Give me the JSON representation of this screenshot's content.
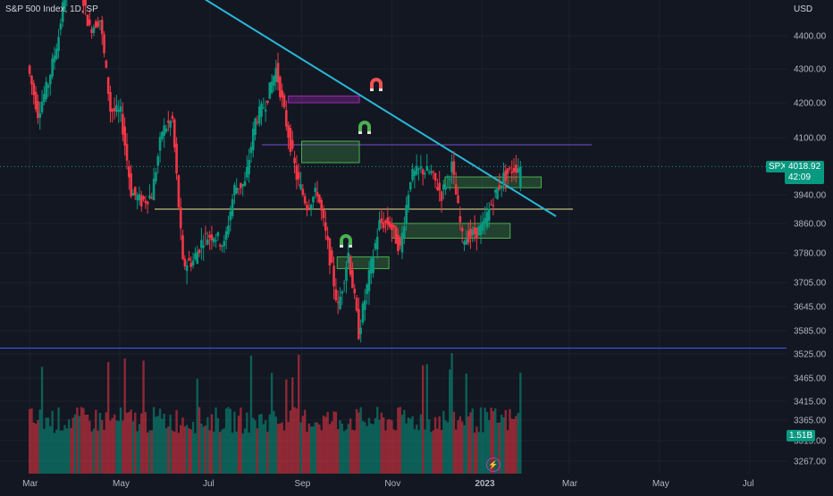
{
  "header": {
    "symbol_title": "S&P 500 Index, 1D, SP",
    "currency": "USD"
  },
  "badges": {
    "spx_label": "SPX",
    "last_price": "4018.92",
    "countdown": "42:09",
    "volume": "1.51B"
  },
  "colors": {
    "background": "#131722",
    "up": "#089981",
    "down": "#f23645",
    "trendline": "#29b6d6",
    "support": "#3d5afe",
    "midline": "#e8e08a",
    "purple_line": "#7b4dd6",
    "zone_fill": "rgba(76,175,80,0.28)",
    "zone_stroke": "#4caf50",
    "purple_zone": "#9c27b0",
    "magnet_red": "#ef5350",
    "magnet_green": "#4caf50"
  },
  "icons": [
    "magnet-red-icon",
    "magnet-green-icon",
    "lightning-icon"
  ],
  "chart_data": {
    "type": "candlestick",
    "title": "S&P 500 Index, 1D, SP",
    "y_axis": {
      "unit": "USD",
      "ticks": [
        "4400.00",
        "4300.00",
        "4200.00",
        "4100.00",
        "3940.00",
        "3860.00",
        "3780.00",
        "3705.00",
        "3645.00",
        "3585.00",
        "3525.00",
        "3465.00",
        "3415.00",
        "3365.00",
        "3315.00",
        "3267.00"
      ]
    },
    "x_axis": {
      "ticks": [
        "Mar",
        "May",
        "Jul",
        "Sep",
        "Nov",
        "2023",
        "Mar",
        "May",
        "Jul"
      ]
    },
    "price_path": [
      [
        "2022-03-01",
        4310
      ],
      [
        "2022-03-08",
        4170
      ],
      [
        "2022-03-15",
        4260
      ],
      [
        "2022-03-22",
        4400
      ],
      [
        "2022-03-29",
        4620
      ],
      [
        "2022-04-05",
        4560
      ],
      [
        "2022-04-12",
        4420
      ],
      [
        "2022-04-19",
        4450
      ],
      [
        "2022-04-26",
        4180
      ],
      [
        "2022-05-03",
        4170
      ],
      [
        "2022-05-10",
        3950
      ],
      [
        "2022-05-17",
        3920
      ],
      [
        "2022-05-24",
        3940
      ],
      [
        "2022-05-31",
        4120
      ],
      [
        "2022-06-07",
        4150
      ],
      [
        "2022-06-14",
        3750
      ],
      [
        "2022-06-21",
        3760
      ],
      [
        "2022-06-28",
        3820
      ],
      [
        "2022-07-05",
        3830
      ],
      [
        "2022-07-12",
        3800
      ],
      [
        "2022-07-19",
        3960
      ],
      [
        "2022-07-26",
        3970
      ],
      [
        "2022-08-02",
        4150
      ],
      [
        "2022-08-09",
        4200
      ],
      [
        "2022-08-16",
        4300
      ],
      [
        "2022-08-23",
        4140
      ],
      [
        "2022-08-30",
        3990
      ],
      [
        "2022-09-06",
        3910
      ],
      [
        "2022-09-13",
        3950
      ],
      [
        "2022-09-20",
        3800
      ],
      [
        "2022-09-27",
        3640
      ],
      [
        "2022-10-04",
        3780
      ],
      [
        "2022-10-11",
        3580
      ],
      [
        "2022-10-18",
        3720
      ],
      [
        "2022-10-25",
        3860
      ],
      [
        "2022-11-01",
        3860
      ],
      [
        "2022-11-08",
        3790
      ],
      [
        "2022-11-15",
        3990
      ],
      [
        "2022-11-22",
        4010
      ],
      [
        "2022-11-29",
        4000
      ],
      [
        "2022-12-06",
        3940
      ],
      [
        "2022-12-13",
        4020
      ],
      [
        "2022-12-20",
        3820
      ],
      [
        "2022-12-27",
        3830
      ],
      [
        "2023-01-03",
        3850
      ],
      [
        "2023-01-10",
        3930
      ],
      [
        "2023-01-17",
        3990
      ],
      [
        "2023-01-24",
        4015
      ],
      [
        "2023-01-27",
        4018.92
      ]
    ],
    "volume_ticks": [
      "1.51B"
    ],
    "current_price": 4018.92,
    "annotations": [
      {
        "type": "trendline",
        "from": [
          "2022-04-20",
          4700
        ],
        "to": [
          "2023-02-20",
          3880
        ]
      },
      {
        "type": "horizontal",
        "price": 3540
      },
      {
        "type": "horizontal",
        "price": 3900
      },
      {
        "type": "horizontal",
        "price": 4080
      },
      {
        "type": "zone",
        "from": "2022-08-23",
        "to": "2022-10-10",
        "low": 4200,
        "high": 4220,
        "style": "purple"
      },
      {
        "type": "zone",
        "from": "2022-09-01",
        "to": "2022-10-10",
        "low": 4030,
        "high": 4090,
        "style": "green"
      },
      {
        "type": "zone",
        "from": "2022-09-25",
        "to": "2022-10-30",
        "low": 3740,
        "high": 3770,
        "style": "green"
      },
      {
        "type": "zone",
        "from": "2022-11-01",
        "to": "2023-01-20",
        "low": 3820,
        "high": 3860,
        "style": "green"
      },
      {
        "type": "zone",
        "from": "2022-12-07",
        "to": "2023-02-10",
        "low": 3960,
        "high": 3990,
        "style": "green"
      }
    ]
  }
}
